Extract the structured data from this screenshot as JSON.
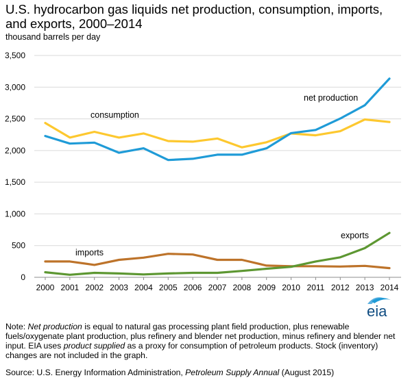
{
  "chart_data": {
    "type": "line",
    "title": "U.S. hydrocarbon gas liquids net production, consumption, imports, and exports, 2000–2014",
    "subtitle": "thousand barrels per day",
    "xlabel": "",
    "ylabel": "",
    "ylim": [
      0,
      3500
    ],
    "yticks": [
      0,
      500,
      1000,
      1500,
      2000,
      2500,
      3000,
      3500
    ],
    "ytick_labels": [
      "0",
      "500",
      "1,000",
      "1,500",
      "2,000",
      "2,500",
      "3,000",
      "3,500"
    ],
    "x": [
      "2000",
      "2001",
      "2002",
      "2003",
      "2004",
      "2005",
      "2006",
      "2007",
      "2008",
      "2009",
      "2010",
      "2011",
      "2012",
      "2013",
      "2014"
    ],
    "grid": true,
    "legend": "none",
    "series": [
      {
        "name": "net production",
        "color": "#1f9bd7",
        "values": [
          2230,
          2110,
          2125,
          1965,
          2035,
          1850,
          1870,
          1935,
          1935,
          2035,
          2275,
          2325,
          2505,
          2715,
          3135
        ]
      },
      {
        "name": "consumption",
        "color": "#fdc82f",
        "values": [
          2435,
          2205,
          2295,
          2205,
          2270,
          2150,
          2140,
          2190,
          2050,
          2130,
          2270,
          2240,
          2305,
          2490,
          2450
        ]
      },
      {
        "name": "imports",
        "color": "#bd732a",
        "values": [
          250,
          250,
          195,
          275,
          310,
          370,
          360,
          275,
          275,
          185,
          175,
          175,
          170,
          180,
          145
        ]
      },
      {
        "name": "exports",
        "color": "#5d9732",
        "values": [
          80,
          40,
          70,
          60,
          45,
          60,
          70,
          70,
          100,
          135,
          165,
          250,
          315,
          460,
          700
        ]
      }
    ]
  },
  "note": {
    "prefix": "Note: ",
    "term1": "Net production",
    "text1": " is equal to natural gas processing plant field production, plus renewable fuels/oxygenate plant production, plus refinery and blender net production, minus refinery and blender net input. EIA uses ",
    "term2": "product supplied",
    "text2": " as a proxy for consumption of petroleum products. Stock (inventory) changes are not included in the graph."
  },
  "source": {
    "prefix": "Source: U.S. Energy Information Administration, ",
    "publication": "Petroleum Supply Annual",
    "suffix": " (August 2015)"
  },
  "logo": {
    "text": "eia",
    "color_dark": "#0f4c81",
    "color_light": "#5bb0e0"
  }
}
